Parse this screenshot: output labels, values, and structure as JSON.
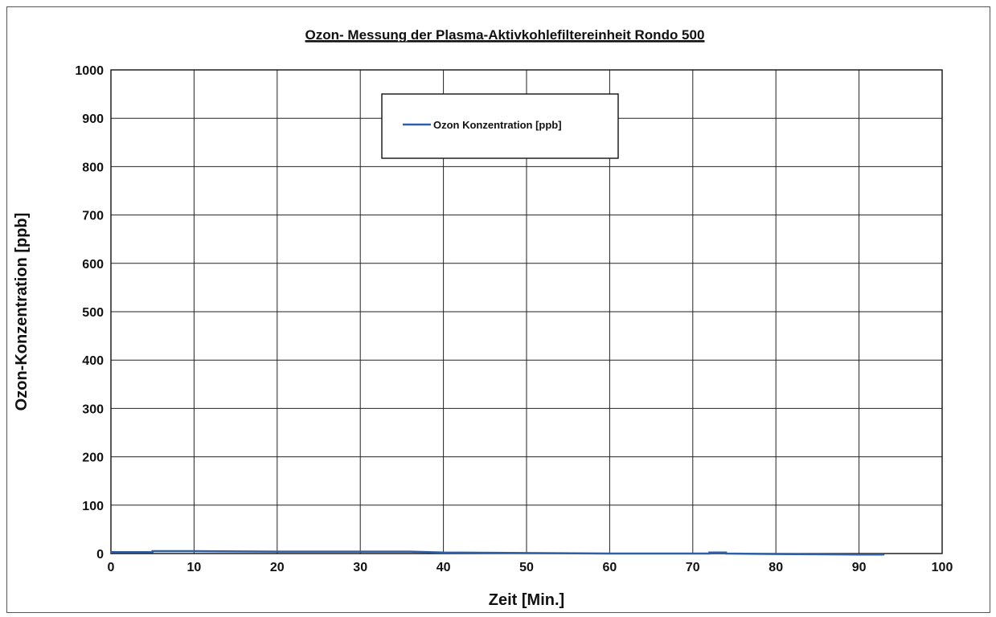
{
  "chart_data": {
    "type": "line",
    "title": "Ozon- Messung der  Plasma-Aktivkohlefiltereinheit   Rondo 500",
    "xlabel": "Zeit [Min.]",
    "ylabel": "Ozon-Konzentration [ppb]",
    "xlim": [
      0,
      100
    ],
    "ylim": [
      0,
      1000
    ],
    "xticks": [
      "0",
      "10",
      "20",
      "30",
      "40",
      "50",
      "60",
      "70",
      "80",
      "90",
      "100"
    ],
    "yticks": [
      "0",
      "100",
      "200",
      "300",
      "400",
      "500",
      "600",
      "700",
      "800",
      "900",
      "1000"
    ],
    "grid": true,
    "legend_position": "top-center",
    "series": [
      {
        "name": "Ozon  Konzentration  [ppb]",
        "color": "#2f5fa8",
        "x": [
          0,
          5,
          5,
          10,
          20,
          30,
          36,
          40,
          50,
          60,
          70,
          72,
          72,
          74,
          74,
          80,
          90,
          93
        ],
        "y": [
          3,
          3,
          5,
          5,
          4,
          4,
          4,
          2,
          1,
          0,
          0,
          0,
          2,
          2,
          0,
          -1,
          -2,
          -2
        ]
      }
    ]
  }
}
